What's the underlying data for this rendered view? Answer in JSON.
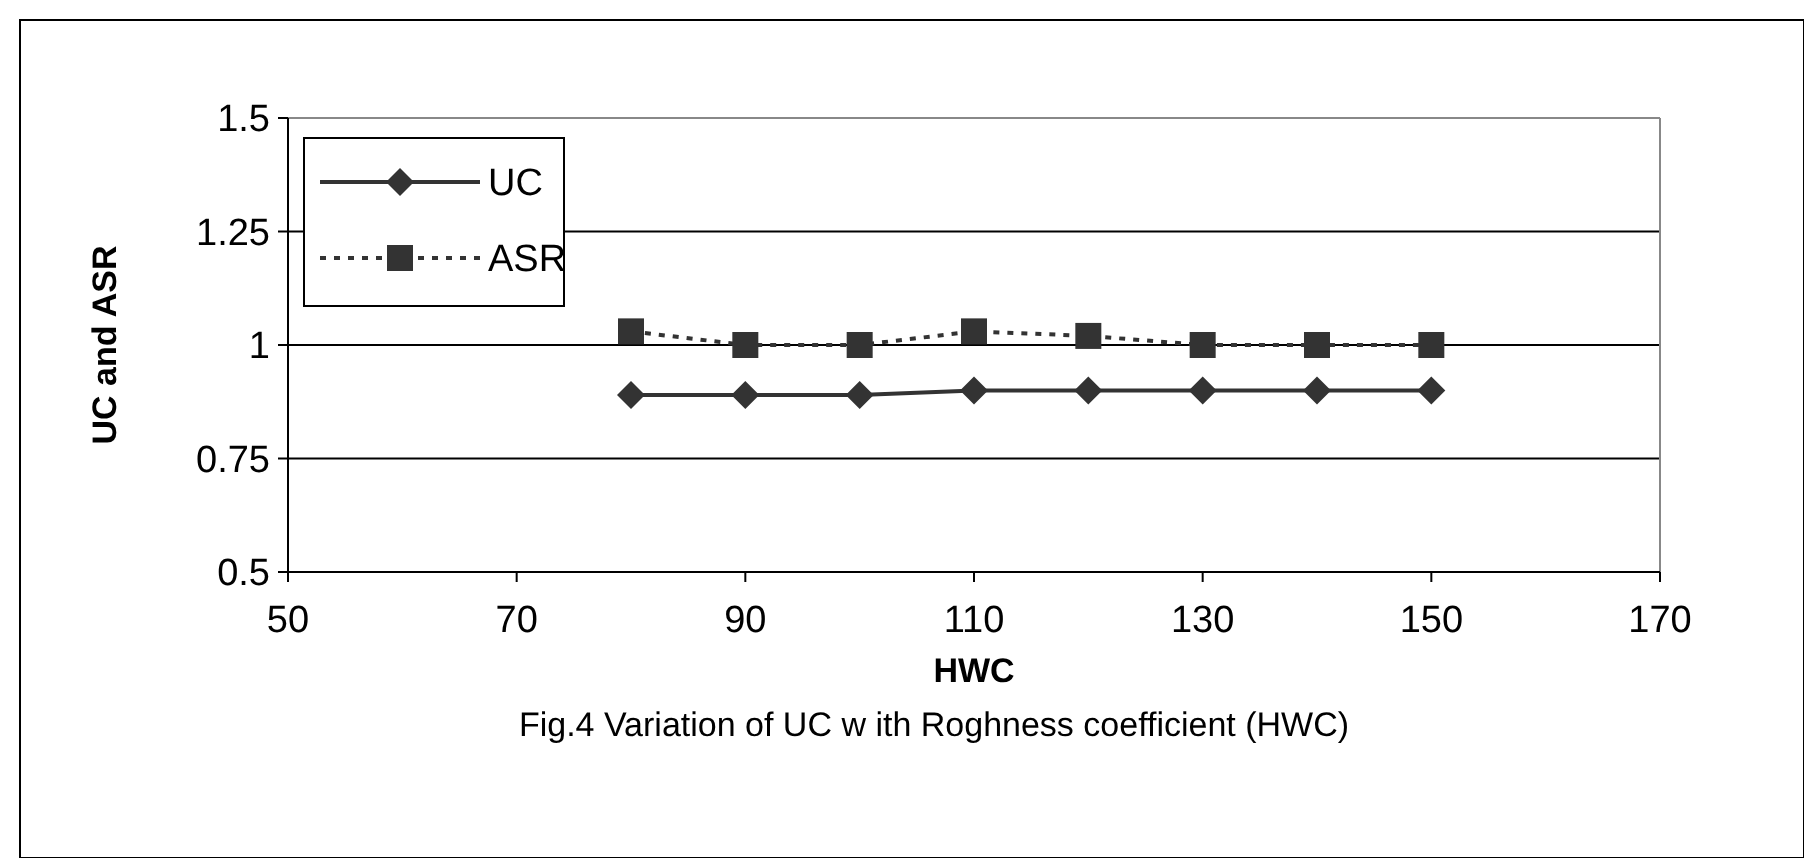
{
  "chart_data": {
    "type": "line",
    "xlabel": "HWC",
    "ylabel": "UC and ASR",
    "annotations": [
      "Fig.4 Variation of UC w ith Roghness coefficient (HWC)"
    ],
    "x": [
      80,
      90,
      100,
      110,
      120,
      130,
      140,
      150
    ],
    "series": [
      {
        "name": "UC",
        "color": "#333333",
        "values": [
          0.89,
          0.89,
          0.89,
          0.9,
          0.9,
          0.9,
          0.9,
          0.9
        ],
        "marker": "diamond",
        "line_style": "solid"
      },
      {
        "name": "ASR",
        "color": "#333333",
        "values": [
          1.03,
          1.0,
          1.0,
          1.03,
          1.02,
          1.0,
          1.0,
          1.0
        ],
        "marker": "square",
        "line_style": "dotted"
      }
    ],
    "xlim": [
      50,
      170
    ],
    "xticks": [
      50,
      70,
      90,
      110,
      130,
      150,
      170
    ],
    "ylim": [
      0.5,
      1.5
    ],
    "yticks": [
      0.5,
      0.75,
      1,
      1.25,
      1.5
    ],
    "grid": "y",
    "legend": "top left"
  }
}
